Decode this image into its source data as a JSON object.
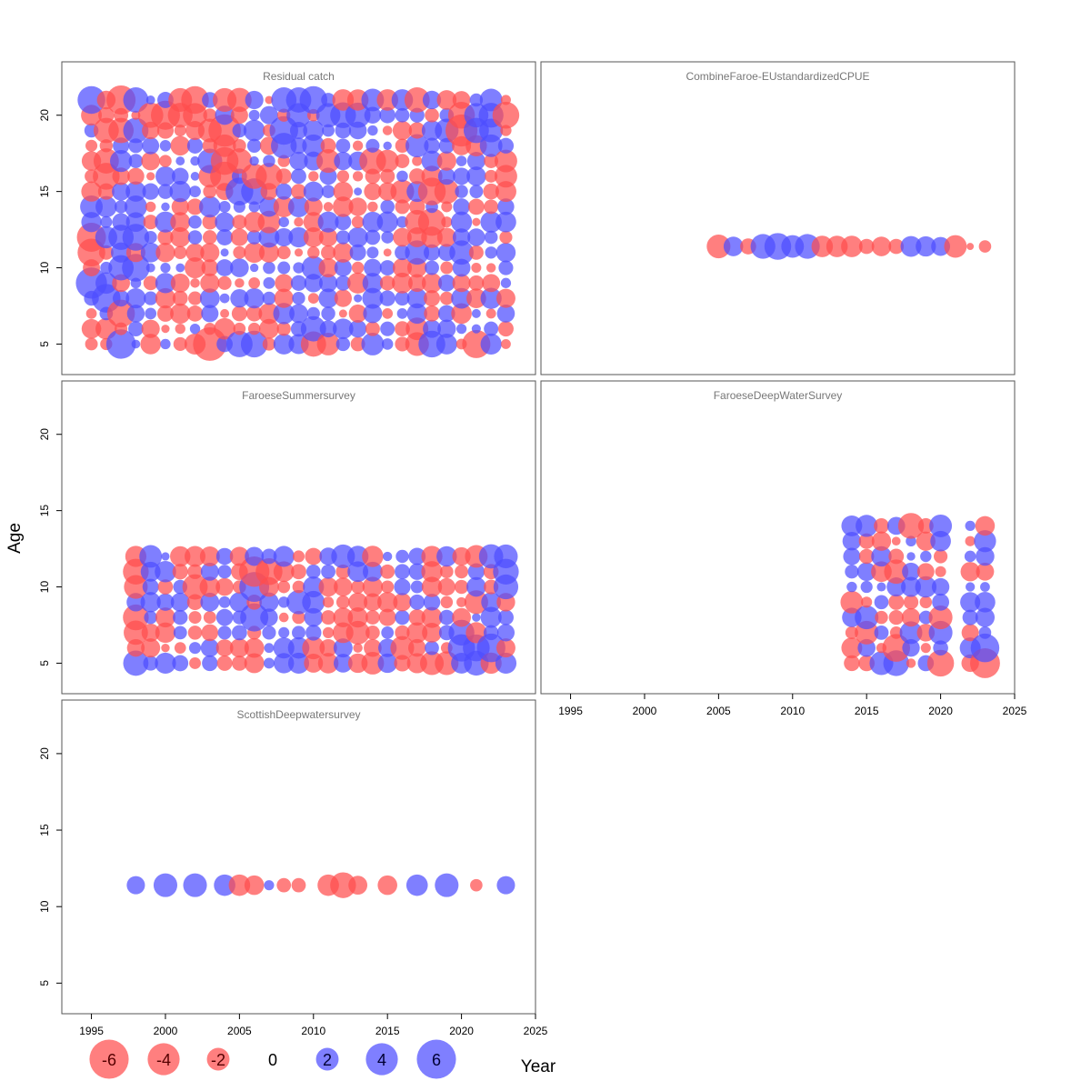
{
  "chart_data": {
    "type": "bubble",
    "xlabel": "Year",
    "ylabel": "Age",
    "xlim": [
      1993,
      2025
    ],
    "x_ticks": [
      1995,
      2000,
      2005,
      2010,
      2015,
      2020,
      2025
    ],
    "ylim": [
      3,
      23.5
    ],
    "y_ticks": [
      5,
      10,
      15,
      20
    ],
    "y_tick_labels": [
      "5",
      "10",
      "15",
      "20"
    ],
    "colors": {
      "negative": "#ff4d4d",
      "positive": "#4d4dff"
    },
    "legend": {
      "values": [
        -6,
        -4,
        -2,
        0,
        2,
        4,
        6
      ],
      "labels": [
        "-6",
        "-4",
        "-2",
        "0",
        "2",
        "4",
        "6"
      ]
    },
    "panels": [
      {
        "title": "Residual catch",
        "years": [
          1995,
          2023
        ],
        "ages": [
          5,
          21
        ],
        "points": [
          [
            1995,
            21,
            3.0
          ],
          [
            1995,
            14,
            2.0
          ],
          [
            1995,
            13,
            1.6
          ],
          [
            1995,
            12,
            -3.3
          ],
          [
            1995,
            11,
            -3.0
          ],
          [
            1995,
            9,
            3.8
          ],
          [
            1995,
            6,
            -1.5
          ],
          [
            1996,
            20,
            -1.0
          ],
          [
            1996,
            19,
            -2.5
          ],
          [
            1996,
            17,
            -2.5
          ],
          [
            1996,
            16,
            -2.8
          ],
          [
            1996,
            12,
            1.9
          ],
          [
            1996,
            9,
            1.8
          ],
          [
            1996,
            8,
            3.2
          ],
          [
            1996,
            7,
            0.7
          ],
          [
            1997,
            21,
            -3.3
          ],
          [
            1997,
            19,
            -2.5
          ],
          [
            1997,
            17,
            1.9
          ],
          [
            1997,
            12,
            2.5
          ],
          [
            1997,
            10,
            2.5
          ],
          [
            1997,
            7,
            -3.0
          ],
          [
            1997,
            5,
            3.4
          ],
          [
            1998,
            21,
            2.5
          ],
          [
            1998,
            19,
            2.5
          ],
          [
            1998,
            14,
            2.0
          ],
          [
            1998,
            12,
            2.8
          ],
          [
            1998,
            10,
            3.0
          ],
          [
            1999,
            20,
            -2.5
          ],
          [
            2000,
            20,
            -3.3
          ],
          [
            2001,
            21,
            -2.2
          ],
          [
            2001,
            20,
            -2.4
          ],
          [
            2002,
            21,
            -3.0
          ],
          [
            2002,
            20,
            -2.3
          ],
          [
            2003,
            19,
            -2.2
          ],
          [
            2003,
            17,
            2.4
          ],
          [
            2003,
            16,
            -2.0
          ],
          [
            2003,
            14,
            1.8
          ],
          [
            2003,
            5,
            -4.4
          ],
          [
            2004,
            21,
            -2.2
          ],
          [
            2004,
            19,
            -4.1
          ],
          [
            2004,
            18,
            -2.0
          ],
          [
            2004,
            17,
            -3.0
          ],
          [
            2004,
            16,
            -3.3
          ],
          [
            2004,
            13,
            1.5
          ],
          [
            2004,
            6,
            -1.8
          ],
          [
            2005,
            21,
            -2.3
          ],
          [
            2005,
            17,
            -2.5
          ],
          [
            2005,
            15,
            3.0
          ],
          [
            2005,
            5,
            2.7
          ],
          [
            2006,
            19,
            1.8
          ],
          [
            2006,
            16,
            -2.5
          ],
          [
            2006,
            15,
            2.7
          ],
          [
            2006,
            5,
            2.8
          ],
          [
            2007,
            16,
            -2.8
          ],
          [
            2007,
            13,
            -2.0
          ],
          [
            2008,
            21,
            2.5
          ],
          [
            2008,
            19,
            3.2
          ],
          [
            2008,
            18,
            2.6
          ],
          [
            2009,
            21,
            2.5
          ],
          [
            2009,
            20,
            2.3
          ],
          [
            2010,
            21,
            3.0
          ],
          [
            2010,
            18,
            2.0
          ],
          [
            2010,
            10,
            2.2
          ],
          [
            2010,
            6,
            2.5
          ],
          [
            2010,
            5,
            -2.5
          ],
          [
            2011,
            20,
            2.3
          ],
          [
            2011,
            17,
            -2.2
          ],
          [
            2011,
            5,
            -2.0
          ],
          [
            2012,
            21,
            -1.8
          ],
          [
            2012,
            20,
            2.6
          ],
          [
            2013,
            20,
            2.5
          ],
          [
            2014,
            21,
            2.0
          ],
          [
            2014,
            17,
            -2.8
          ],
          [
            2014,
            5,
            2.0
          ],
          [
            2015,
            21,
            -1.8
          ],
          [
            2015,
            17,
            -2.0
          ],
          [
            2016,
            21,
            1.8
          ],
          [
            2016,
            15,
            -2.2
          ],
          [
            2017,
            21,
            -2.5
          ],
          [
            2017,
            18,
            2.1
          ],
          [
            2017,
            13,
            -2.3
          ],
          [
            2017,
            11,
            2.3
          ],
          [
            2017,
            6,
            -2.0
          ],
          [
            2017,
            5,
            -2.2
          ],
          [
            2018,
            15,
            -3.0
          ],
          [
            2018,
            13,
            -3.0
          ],
          [
            2018,
            5,
            2.8
          ],
          [
            2019,
            19,
            2.2
          ],
          [
            2019,
            15,
            -2.4
          ],
          [
            2020,
            20,
            -2.8
          ],
          [
            2020,
            19,
            -4.0
          ],
          [
            2020,
            11,
            2.3
          ],
          [
            2021,
            20,
            2.3
          ],
          [
            2021,
            19,
            2.5
          ],
          [
            2021,
            5,
            -3.1
          ],
          [
            2022,
            21,
            2.0
          ],
          [
            2022,
            20,
            2.4
          ],
          [
            2022,
            19,
            2.2
          ],
          [
            2022,
            18,
            2.0
          ],
          [
            2023,
            20,
            -2.8
          ],
          [
            2023,
            17,
            -2.0
          ],
          [
            2023,
            16,
            -2.0
          ]
        ]
      },
      {
        "title": "CombineFaroe-EUstandardizedCPUE",
        "years": [
          2005,
          2023
        ],
        "ages": [
          11.4
        ],
        "points": [
          [
            2005,
            11.4,
            -2.2
          ],
          [
            2006,
            11.4,
            1.5
          ],
          [
            2007,
            11.4,
            -1.0
          ],
          [
            2008,
            11.4,
            2.4
          ],
          [
            2009,
            11.4,
            2.8
          ],
          [
            2010,
            11.4,
            2.0
          ],
          [
            2011,
            11.4,
            2.4
          ],
          [
            2012,
            11.4,
            -1.8
          ],
          [
            2013,
            11.4,
            -1.8
          ],
          [
            2014,
            11.4,
            -1.8
          ],
          [
            2015,
            11.4,
            -0.9
          ],
          [
            2016,
            11.4,
            -1.5
          ],
          [
            2017,
            11.4,
            -0.9
          ],
          [
            2018,
            11.4,
            1.7
          ],
          [
            2019,
            11.4,
            1.6
          ],
          [
            2020,
            11.4,
            1.4
          ],
          [
            2021,
            11.4,
            -2.0
          ],
          [
            2022,
            11.4,
            -0.2
          ],
          [
            2023,
            11.4,
            -0.6
          ]
        ]
      },
      {
        "title": "FaroeseSummersurvey",
        "years": [
          1998,
          2023
        ],
        "ages": [
          5,
          12
        ],
        "points": [
          [
            1998,
            11,
            -2.6
          ],
          [
            1998,
            10,
            -2.2
          ],
          [
            1998,
            8,
            -2.6
          ],
          [
            1998,
            7,
            -2.3
          ],
          [
            1998,
            5,
            2.5
          ],
          [
            1999,
            12,
            2.0
          ],
          [
            1999,
            9,
            1.6
          ],
          [
            2002,
            10,
            -2.5
          ],
          [
            2006,
            11,
            -3.6
          ],
          [
            2006,
            10,
            3.5
          ],
          [
            2006,
            8,
            3.1
          ],
          [
            2007,
            11,
            -2.8
          ],
          [
            2009,
            9,
            2.3
          ],
          [
            2010,
            9,
            2.0
          ],
          [
            2010,
            6,
            -2.0
          ],
          [
            2012,
            12,
            2.2
          ],
          [
            2013,
            7,
            -2.2
          ],
          [
            2014,
            5,
            -2.0
          ],
          [
            2016,
            6,
            -2.2
          ],
          [
            2018,
            5,
            -2.2
          ],
          [
            2019,
            5,
            -2.2
          ],
          [
            2020,
            7,
            2.6
          ],
          [
            2020,
            6,
            2.9
          ],
          [
            2021,
            12,
            -2.0
          ],
          [
            2021,
            9,
            -2.2
          ],
          [
            2021,
            6,
            2.8
          ],
          [
            2021,
            5,
            2.4
          ],
          [
            2022,
            12,
            2.3
          ],
          [
            2022,
            6,
            3.2
          ],
          [
            2023,
            12,
            2.2
          ],
          [
            2023,
            11,
            2.6
          ],
          [
            2023,
            10,
            2.4
          ]
        ]
      },
      {
        "title": "FaroeseDeepWaterSurvey",
        "years": [
          2014,
          2023
        ],
        "ages": [
          5,
          14
        ],
        "points": [
          [
            2014,
            14,
            1.7
          ],
          [
            2014,
            9,
            -2.0
          ],
          [
            2014,
            6,
            -1.7
          ],
          [
            2015,
            14,
            1.9
          ],
          [
            2015,
            8,
            2.2
          ],
          [
            2015,
            7,
            -2.2
          ],
          [
            2016,
            5,
            2.2
          ],
          [
            2017,
            11,
            -2.3
          ],
          [
            2017,
            6,
            -3.0
          ],
          [
            2017,
            5,
            2.6
          ],
          [
            2018,
            14,
            -2.6
          ],
          [
            2018,
            7,
            2.0
          ],
          [
            2020,
            14,
            2.0
          ],
          [
            2020,
            8,
            -2.2
          ],
          [
            2020,
            7,
            2.2
          ],
          [
            2020,
            5,
            -2.8
          ],
          [
            2023,
            14,
            -1.5
          ],
          [
            2023,
            13,
            1.9
          ],
          [
            2023,
            6,
            3.2
          ],
          [
            2023,
            5,
            -3.5
          ]
        ]
      },
      {
        "title": "ScottishDeepwatersurvey",
        "years": [
          1998,
          2023
        ],
        "ages": [
          11.4
        ],
        "points": [
          [
            1998,
            11.4,
            1.3
          ],
          [
            2000,
            11.4,
            2.2
          ],
          [
            2002,
            11.4,
            2.2
          ],
          [
            2004,
            11.4,
            1.8
          ],
          [
            2005,
            11.4,
            -1.8
          ],
          [
            2006,
            11.4,
            -1.5
          ],
          [
            2007,
            11.4,
            0.4
          ],
          [
            2008,
            11.4,
            -0.8
          ],
          [
            2009,
            11.4,
            -0.8
          ],
          [
            2011,
            11.4,
            -1.8
          ],
          [
            2012,
            11.4,
            -2.6
          ],
          [
            2013,
            11.4,
            -1.4
          ],
          [
            2015,
            11.4,
            -1.5
          ],
          [
            2017,
            11.4,
            1.8
          ],
          [
            2019,
            11.4,
            2.2
          ],
          [
            2021,
            11.4,
            -0.6
          ],
          [
            2023,
            11.4,
            1.3
          ]
        ]
      }
    ]
  }
}
